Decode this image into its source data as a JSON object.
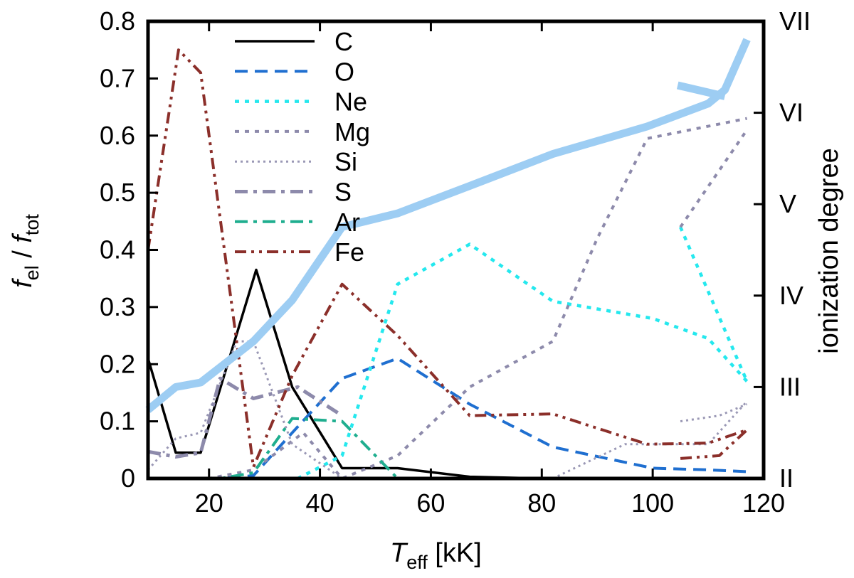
{
  "chart_data": {
    "type": "line",
    "xlabel": {
      "main": "T",
      "sub": "eff",
      "rest": " [kK]"
    },
    "ylabel": {
      "a": "f",
      "a_sub": "el",
      "sep": " / ",
      "b": "f",
      "b_sub": "tot"
    },
    "y2label": "ionization degree",
    "xlim": [
      9,
      120
    ],
    "ylim": [
      0,
      0.8
    ],
    "xticks": [
      20,
      40,
      60,
      80,
      100,
      120
    ],
    "yticks": [
      0,
      0.1,
      0.2,
      0.3,
      0.4,
      0.5,
      0.6,
      0.7,
      0.8
    ],
    "ytick_labels": [
      "0",
      "0.1",
      "0.2",
      "0.3",
      "0.4",
      "0.5",
      "0.6",
      "0.7",
      "0.8"
    ],
    "y2lim": [
      2,
      7
    ],
    "y2ticks": [
      2,
      3,
      4,
      5,
      6,
      7
    ],
    "y2tick_labels": [
      "II",
      "III",
      "IV",
      "V",
      "VI",
      "VII"
    ],
    "grid": false,
    "legend_position": "top-left",
    "series": [
      {
        "name": "C",
        "color": "#000000",
        "dash": "solid",
        "width": 3.5,
        "segments": [
          [
            [
              9,
              0.21
            ],
            [
              14,
              0.045
            ],
            [
              18.5,
              0.045
            ],
            [
              28.5,
              0.365
            ],
            [
              35,
              0.16
            ],
            [
              44,
              0.018
            ],
            [
              54,
              0.018
            ],
            [
              67,
              0.003
            ],
            [
              80,
              0.0
            ],
            [
              117,
              0.0
            ]
          ]
        ]
      },
      {
        "name": "O",
        "color": "#1f6fd0",
        "dash": "dashed",
        "width": 4,
        "segments": [
          [
            [
              9,
              0.0
            ],
            [
              22,
              0.0
            ],
            [
              28,
              0.005
            ],
            [
              35,
              0.08
            ],
            [
              44,
              0.175
            ],
            [
              54,
              0.21
            ],
            [
              67,
              0.13
            ],
            [
              82,
              0.055
            ],
            [
              100,
              0.018
            ],
            [
              110,
              0.015
            ],
            [
              117,
              0.012
            ]
          ]
        ]
      },
      {
        "name": "Ne",
        "color": "#25e8ee",
        "dash": "dotted",
        "width": 4.5,
        "segments": [
          [
            [
              9,
              0.0
            ],
            [
              36,
              0.0
            ],
            [
              44,
              0.04
            ],
            [
              54,
              0.34
            ],
            [
              67,
              0.41
            ],
            [
              82,
              0.31
            ],
            [
              100,
              0.28
            ],
            [
              110,
              0.245
            ],
            [
              117,
              0.17
            ]
          ],
          [
            [
              105,
              0.44
            ],
            [
              117,
              0.17
            ]
          ]
        ]
      },
      {
        "name": "Mg",
        "color": "#8d8aab",
        "dash": "dotted",
        "width": 4,
        "segments": [
          [
            [
              9,
              0.0
            ],
            [
              20,
              0.0
            ],
            [
              28,
              0.015
            ],
            [
              37,
              0.08
            ],
            [
              44,
              0.0
            ],
            [
              54,
              0.04
            ],
            [
              67,
              0.16
            ],
            [
              82,
              0.24
            ],
            [
              90,
              0.42
            ],
            [
              99,
              0.595
            ],
            [
              117,
              0.63
            ]
          ],
          [
            [
              105,
              0.44
            ],
            [
              117,
              0.61
            ]
          ]
        ]
      },
      {
        "name": "Si",
        "color": "#9a98b5",
        "dash": "finedot",
        "width": 3,
        "segments": [
          [
            [
              9,
              0.015
            ],
            [
              14,
              0.07
            ],
            [
              18.5,
              0.08
            ],
            [
              25,
              0.24
            ],
            [
              28,
              0.24
            ],
            [
              35,
              0.06
            ],
            [
              44,
              0.0
            ],
            [
              54,
              0.0
            ],
            [
              67,
              0.0
            ],
            [
              82,
              0.0
            ],
            [
              95,
              0.06
            ],
            [
              110,
              0.06
            ],
            [
              117,
              0.135
            ]
          ],
          [
            [
              105,
              0.1
            ],
            [
              112,
              0.11
            ],
            [
              117,
              0.13
            ]
          ]
        ]
      },
      {
        "name": "S",
        "color": "#8d8aab",
        "dash": "dashdot",
        "width": 5,
        "segments": [
          [
            [
              9,
              0.047
            ],
            [
              14,
              0.038
            ],
            [
              18.5,
              0.045
            ],
            [
              22,
              0.175
            ],
            [
              28,
              0.14
            ],
            [
              36,
              0.16
            ],
            [
              44,
              0.11
            ]
          ]
        ]
      },
      {
        "name": "Ar",
        "color": "#1fae8f",
        "dash": "dashdot",
        "width": 4,
        "segments": [
          [
            [
              9,
              0.0
            ],
            [
              22,
              0.0
            ],
            [
              28,
              0.01
            ],
            [
              35,
              0.105
            ],
            [
              44,
              0.1
            ],
            [
              54,
              0.0
            ]
          ]
        ]
      },
      {
        "name": "Fe",
        "color": "#8b2f2a",
        "dash": "dashdotdot",
        "width": 4,
        "segments": [
          [
            [
              9,
              0.4
            ],
            [
              14.5,
              0.75
            ],
            [
              18.5,
              0.71
            ],
            [
              28,
              0.02
            ],
            [
              35,
              0.18
            ],
            [
              44,
              0.34
            ],
            [
              54,
              0.25
            ],
            [
              67,
              0.11
            ],
            [
              82,
              0.113
            ],
            [
              99,
              0.06
            ],
            [
              110,
              0.062
            ],
            [
              117,
              0.085
            ]
          ],
          [
            [
              105,
              0.035
            ],
            [
              112,
              0.04
            ],
            [
              117,
              0.085
            ]
          ]
        ]
      }
    ],
    "ionization_series": {
      "name": "",
      "color": "#9dcdf3",
      "width": 11,
      "axis": "right",
      "segments": [
        [
          [
            9,
            2.75
          ],
          [
            14,
            3.0
          ],
          [
            18.5,
            3.05
          ],
          [
            28,
            3.5
          ],
          [
            35,
            3.95
          ],
          [
            44,
            4.75
          ],
          [
            54,
            4.9
          ],
          [
            67,
            5.2
          ],
          [
            82,
            5.55
          ],
          [
            99,
            5.85
          ],
          [
            110,
            6.1
          ],
          [
            113,
            6.25
          ],
          [
            117,
            6.8
          ]
        ],
        [
          [
            104.5,
            6.3
          ],
          [
            113,
            6.18
          ]
        ]
      ]
    }
  }
}
